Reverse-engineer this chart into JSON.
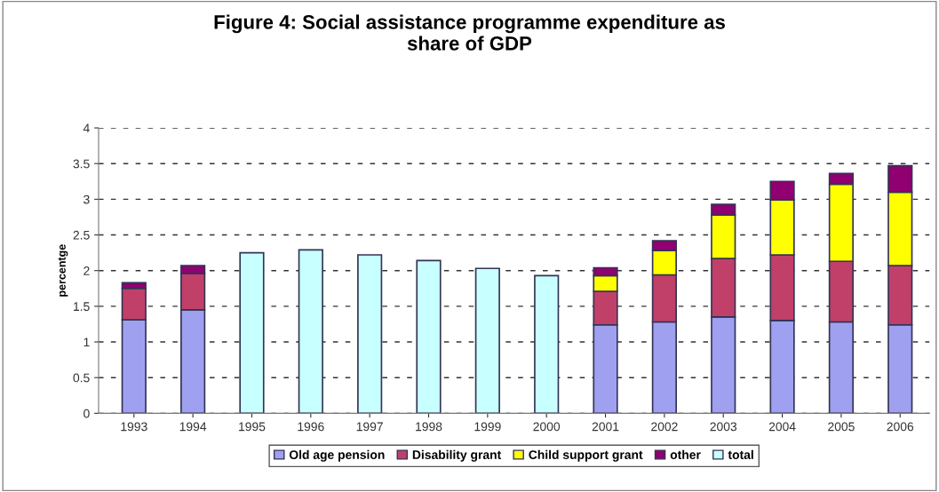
{
  "chart_data": {
    "type": "bar",
    "stacked": true,
    "title": "Figure 4: Social assistance programme expenditure as\nshare of GDP",
    "ylabel": "percentge",
    "categories": [
      "1993",
      "1994",
      "1995",
      "1996",
      "1997",
      "1998",
      "1999",
      "2000",
      "2001",
      "2002",
      "2003",
      "2004",
      "2005",
      "2006"
    ],
    "series": [
      {
        "name": "Old age pension",
        "color": "#a0a0f0",
        "values": [
          1.31,
          1.45,
          null,
          null,
          null,
          null,
          null,
          null,
          1.24,
          1.28,
          1.35,
          1.3,
          1.28,
          1.24
        ]
      },
      {
        "name": "Disability grant",
        "color": "#c0406a",
        "values": [
          0.44,
          0.51,
          null,
          null,
          null,
          null,
          null,
          null,
          0.47,
          0.66,
          0.82,
          0.92,
          0.85,
          0.83
        ]
      },
      {
        "name": "Child support grant",
        "color": "#ffff00",
        "values": [
          null,
          null,
          null,
          null,
          null,
          null,
          null,
          null,
          0.22,
          0.34,
          0.61,
          0.77,
          1.08,
          1.03
        ]
      },
      {
        "name": "other",
        "color": "#900070",
        "values": [
          0.08,
          0.11,
          null,
          null,
          null,
          null,
          null,
          null,
          0.11,
          0.14,
          0.15,
          0.26,
          0.15,
          0.37
        ]
      },
      {
        "name": "total",
        "color": "#c8ffff",
        "values": [
          null,
          null,
          2.25,
          2.29,
          2.22,
          2.14,
          2.03,
          1.93,
          null,
          null,
          null,
          null,
          null,
          null
        ]
      }
    ],
    "ylim": [
      0,
      4
    ],
    "yticks": [
      0,
      0.5,
      1,
      1.5,
      2,
      2.5,
      3,
      3.5,
      4
    ],
    "grid": "y",
    "line_style": "dashed",
    "legend": "bottom"
  }
}
